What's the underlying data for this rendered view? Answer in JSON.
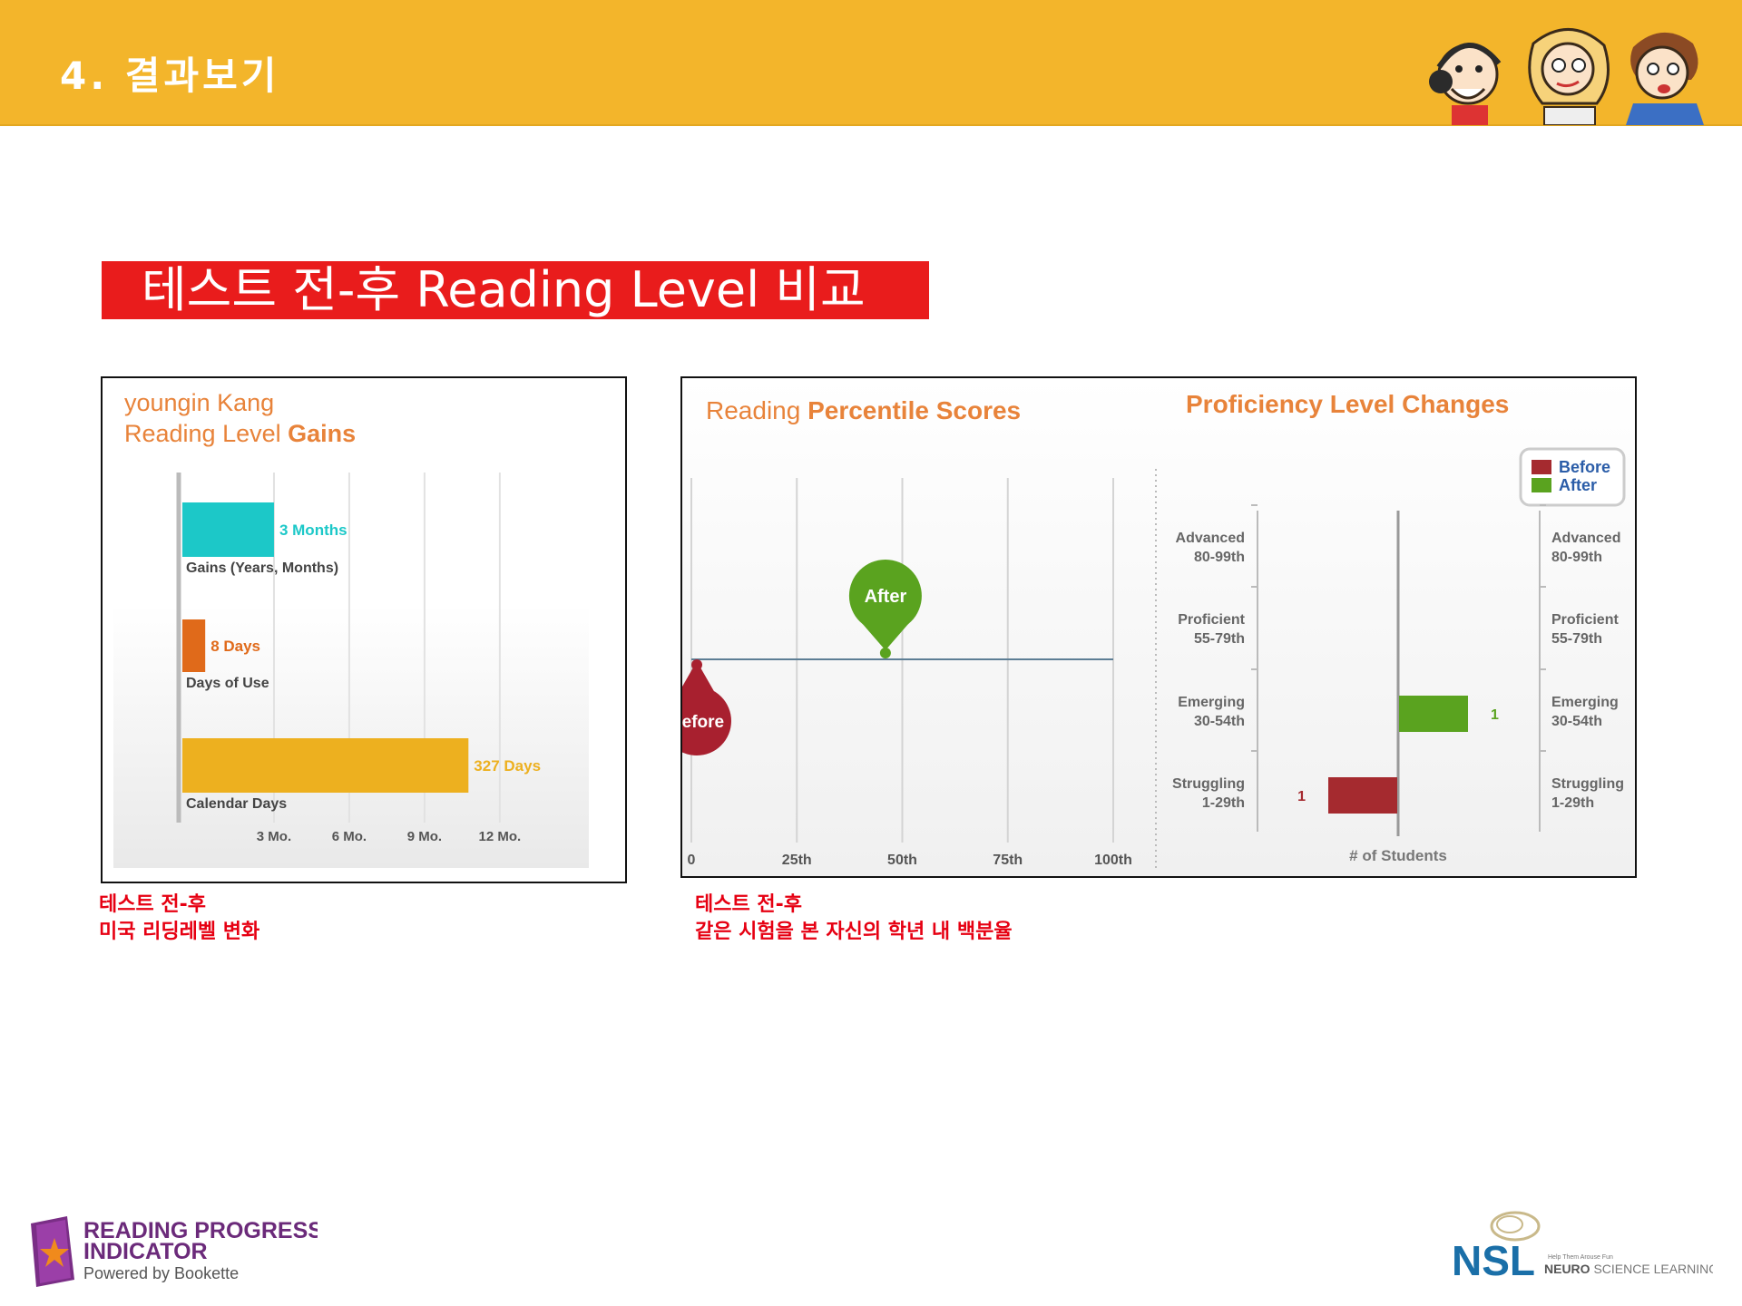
{
  "header": {
    "section_title": "4. 결과보기"
  },
  "main_title": "테스트 전-후 Reading Level 비교",
  "gains_chart": {
    "name": "youngin Kang",
    "title_plain": "Reading Level ",
    "title_bold": "Gains",
    "colors": {
      "gains": "#1CC8C8",
      "days_of_use": "#E06A1A",
      "calendar": "#EDB01F"
    },
    "chart_data": {
      "type": "bar",
      "orientation": "horizontal",
      "unit": "months",
      "categories": [
        "Gains (Years, Months)",
        "Days of Use",
        "Calendar Days"
      ],
      "values": [
        3,
        0.26,
        10.75
      ],
      "data_labels": [
        "3 Months",
        "8 Days",
        "327 Days"
      ],
      "x_ticks": [
        3,
        6,
        9,
        12
      ],
      "tick_labels": [
        "3 Mo.",
        "6 Mo.",
        "9 Mo.",
        "12 Mo."
      ],
      "xlim": [
        0,
        12.8
      ],
      "grid": true
    }
  },
  "percentile_chart": {
    "title_plain": "Reading ",
    "title_bold": "Percentile Scores",
    "chart_data": {
      "type": "scatter",
      "x_ticks": [
        0,
        25,
        50,
        75,
        100
      ],
      "tick_labels": [
        "0",
        "25th",
        "50th",
        "75th",
        "100th"
      ],
      "xlim": [
        0,
        100
      ],
      "points": [
        {
          "name": "Before",
          "label": "Before",
          "x": 0,
          "color": "#A8202F"
        },
        {
          "name": "After",
          "label": "After",
          "x": 46,
          "color": "#5AA31F"
        }
      ],
      "grid": true
    }
  },
  "proficiency_chart": {
    "title": "Proficiency Level Changes",
    "legend": {
      "position": "top-right",
      "items": [
        "Before",
        "After"
      ]
    },
    "chart_data": {
      "type": "bar",
      "orientation": "diverging",
      "categories": [
        {
          "name": "Advanced",
          "range": "80-99th"
        },
        {
          "name": "Proficient",
          "range": "55-79th"
        },
        {
          "name": "Emerging",
          "range": "30-54th"
        },
        {
          "name": "Struggling",
          "range": "1-29th"
        }
      ],
      "series": [
        {
          "name": "Before",
          "color": "#A52A2F",
          "values": [
            0,
            0,
            0,
            1
          ]
        },
        {
          "name": "After",
          "color": "#5AA31F",
          "values": [
            0,
            0,
            1,
            0
          ]
        }
      ],
      "value_labels": {
        "after_emerging": "1",
        "before_struggling": "1"
      },
      "xlabel": "# of Students"
    }
  },
  "captions": {
    "left_line1": "테스트 전-후",
    "left_line2": "미국 리딩레벨 변화",
    "right_line1": "테스트 전-후",
    "right_line2": "같은 시험을 본 자신의 학년 내 백분율"
  },
  "footer": {
    "rpi_line1": "READING PROGRESS",
    "rpi_line2": "INDICATOR",
    "rpi_powered": "Powered by Bookette",
    "nsl_mark": "NSL",
    "nsl_tagline": "Help Them Arouse Fun",
    "nsl_name_bold": "NEURO",
    "nsl_name_rest": " SCIENCE LEARNING"
  }
}
